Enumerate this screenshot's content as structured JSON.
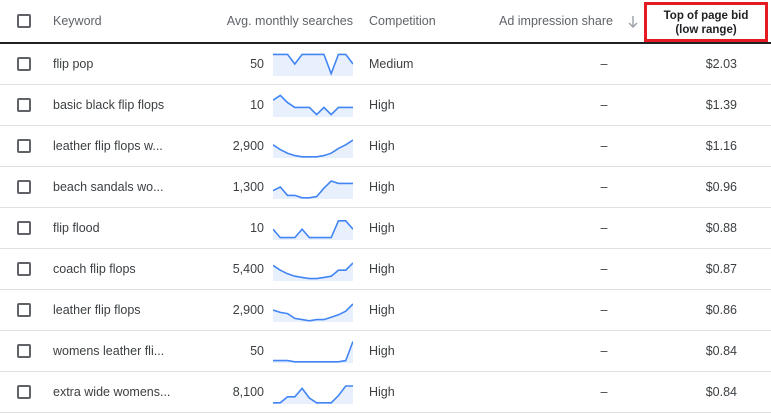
{
  "header": {
    "keyword": "Keyword",
    "avg_monthly_searches": "Avg. monthly searches",
    "competition": "Competition",
    "ad_impression_share": "Ad impression share",
    "top_bid_line1": "Top of page bid",
    "top_bid_line2": "(low range)",
    "sort_icon": "arrow-down-icon",
    "highlight_color": "#e41b23"
  },
  "colors": {
    "sparkline_stroke": "#4285f4",
    "sparkline_fill": "#e8f0fe",
    "divider": "#e0e0e0"
  },
  "rows": [
    {
      "keyword": "flip pop",
      "searches": "50",
      "competition": "Medium",
      "ad_impression_share": "–",
      "top_bid": "$2.03",
      "trend": [
        0.9,
        0.9,
        0.9,
        0.5,
        0.9,
        0.9,
        0.9,
        0.9,
        0.1,
        0.9,
        0.9,
        0.5
      ]
    },
    {
      "keyword": "basic black flip flops",
      "searches": "10",
      "competition": "High",
      "ad_impression_share": "–",
      "top_bid": "$1.39",
      "trend": [
        0.7,
        0.9,
        0.6,
        0.4,
        0.4,
        0.4,
        0.1,
        0.4,
        0.1,
        0.4,
        0.4,
        0.4
      ]
    },
    {
      "keyword": "leather flip flops w...",
      "searches": "2,900",
      "competition": "High",
      "ad_impression_share": "–",
      "top_bid": "$1.16",
      "trend": [
        0.55,
        0.35,
        0.2,
        0.1,
        0.05,
        0.05,
        0.05,
        0.1,
        0.2,
        0.4,
        0.55,
        0.75
      ]
    },
    {
      "keyword": "beach sandals wo...",
      "searches": "1,300",
      "competition": "High",
      "ad_impression_share": "–",
      "top_bid": "$0.96",
      "trend": [
        0.35,
        0.5,
        0.15,
        0.15,
        0.05,
        0.05,
        0.1,
        0.45,
        0.75,
        0.65,
        0.65,
        0.65
      ]
    },
    {
      "keyword": "flip flood",
      "searches": "10",
      "competition": "High",
      "ad_impression_share": "–",
      "top_bid": "$0.88",
      "trend": [
        0.45,
        0.1,
        0.1,
        0.1,
        0.45,
        0.1,
        0.1,
        0.1,
        0.1,
        0.8,
        0.8,
        0.45
      ]
    },
    {
      "keyword": "coach flip flops",
      "searches": "5,400",
      "competition": "High",
      "ad_impression_share": "–",
      "top_bid": "$0.87",
      "trend": [
        0.65,
        0.45,
        0.3,
        0.2,
        0.15,
        0.1,
        0.1,
        0.15,
        0.2,
        0.45,
        0.45,
        0.75
      ]
    },
    {
      "keyword": "leather flip flops",
      "searches": "2,900",
      "competition": "High",
      "ad_impression_share": "–",
      "top_bid": "$0.86",
      "trend": [
        0.5,
        0.4,
        0.35,
        0.15,
        0.1,
        0.05,
        0.1,
        0.1,
        0.2,
        0.3,
        0.45,
        0.75
      ]
    },
    {
      "keyword": "womens leather fli...",
      "searches": "50",
      "competition": "High",
      "ad_impression_share": "–",
      "top_bid": "$0.84",
      "trend": [
        0.1,
        0.1,
        0.1,
        0.05,
        0.05,
        0.05,
        0.05,
        0.05,
        0.05,
        0.05,
        0.1,
        0.9
      ]
    },
    {
      "keyword": "extra wide womens...",
      "searches": "8,100",
      "competition": "High",
      "ad_impression_share": "–",
      "top_bid": "$0.84",
      "trend": [
        0.05,
        0.05,
        0.3,
        0.3,
        0.65,
        0.25,
        0.05,
        0.05,
        0.05,
        0.35,
        0.75,
        0.75
      ]
    }
  ]
}
